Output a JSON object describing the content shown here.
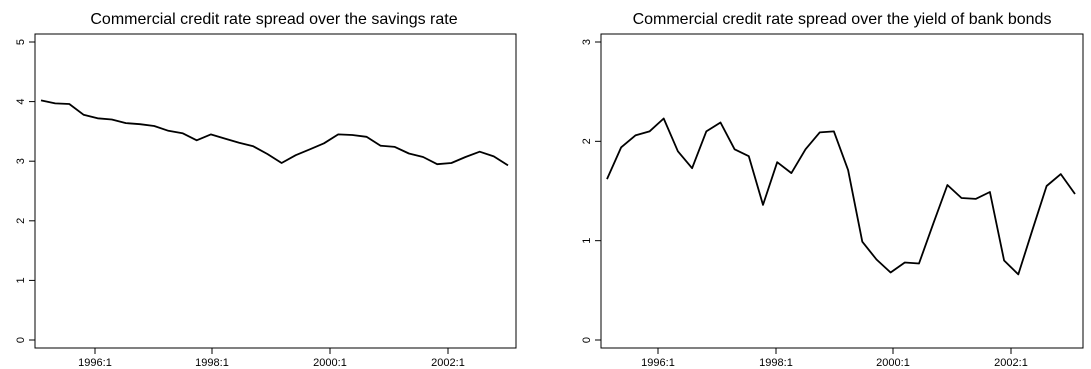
{
  "chart_data": [
    {
      "type": "line",
      "title": "Commercial credit rate spread over the savings rate",
      "xlabel": "",
      "ylabel": "",
      "x_tick_labels": [
        "1996:1",
        "1998:1",
        "2000:1",
        "2002:1"
      ],
      "y_ticks": [
        0,
        1,
        2,
        3,
        4,
        5
      ],
      "ylim": [
        0,
        5
      ],
      "grid": false,
      "series": [
        {
          "values": [
            4.02,
            3.97,
            3.96,
            3.78,
            3.72,
            3.7,
            3.64,
            3.62,
            3.59,
            3.51,
            3.47,
            3.35,
            3.45,
            3.38,
            3.31,
            3.25,
            3.12,
            2.97,
            3.1,
            3.2,
            3.3,
            3.45,
            3.44,
            3.41,
            3.26,
            3.24,
            3.13,
            3.07,
            2.95,
            2.97,
            3.07,
            3.16,
            3.08,
            2.93
          ]
        }
      ]
    },
    {
      "type": "line",
      "title": "Commercial credit rate spread over the yield of bank bonds",
      "xlabel": "",
      "ylabel": "",
      "x_tick_labels": [
        "1996:1",
        "1998:1",
        "2000:1",
        "2002:1"
      ],
      "y_ticks": [
        0,
        1,
        2,
        3
      ],
      "ylim": [
        0,
        3
      ],
      "grid": false,
      "series": [
        {
          "values": [
            1.62,
            1.94,
            2.06,
            2.1,
            2.23,
            1.9,
            1.73,
            2.1,
            2.19,
            1.92,
            1.85,
            1.36,
            1.79,
            1.68,
            1.92,
            2.09,
            2.1,
            1.71,
            0.99,
            0.81,
            0.68,
            0.78,
            0.77,
            1.17,
            1.56,
            1.43,
            1.42,
            1.49,
            0.8,
            0.66,
            1.11,
            1.55,
            1.67,
            1.47
          ]
        }
      ]
    }
  ]
}
